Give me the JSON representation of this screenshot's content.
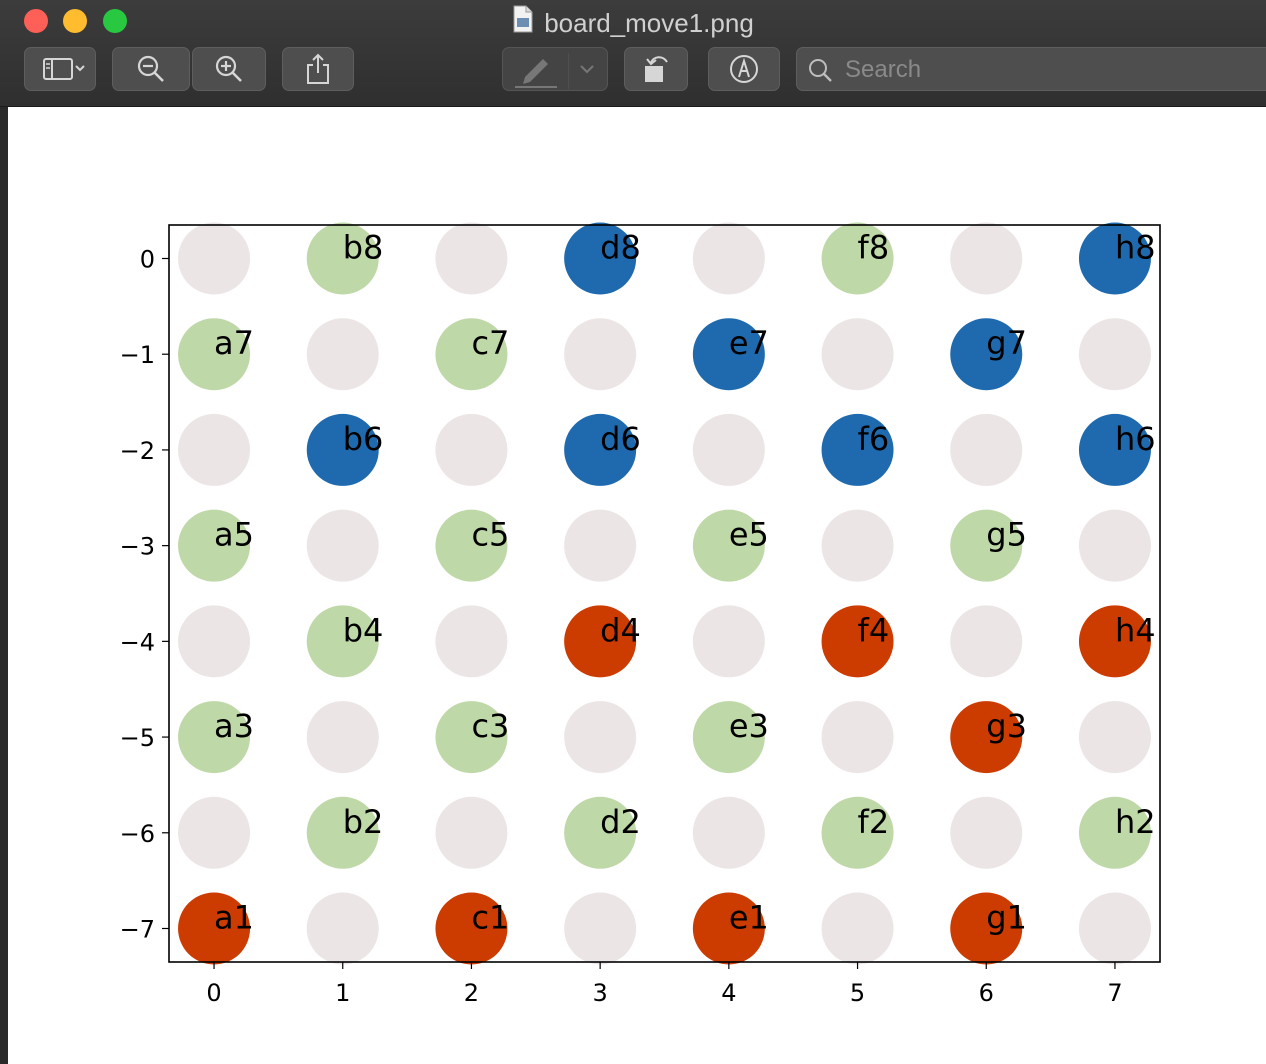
{
  "window": {
    "title": "board_move1.png",
    "search_placeholder": "Search"
  },
  "toolbar": {
    "icons": [
      "sidebar-icon",
      "chevron-down-icon",
      "zoom-out-icon",
      "zoom-in-icon",
      "share-icon",
      "markup-pen-icon",
      "chevron-down-icon",
      "rotate-icon",
      "annotate-icon",
      "search-icon"
    ]
  },
  "colors": {
    "empty": "#ece5e5",
    "light": "#bfd8a8",
    "blue": "#1f6aae",
    "red": "#cc3b00"
  },
  "chart_data": {
    "type": "scatter",
    "x_ticks": [
      "0",
      "1",
      "2",
      "3",
      "4",
      "5",
      "6",
      "7"
    ],
    "y_ticks": [
      "0",
      "−1",
      "−2",
      "−3",
      "−4",
      "−5",
      "−6",
      "−7"
    ],
    "xlim": [
      -0.35,
      7.35
    ],
    "ylim": [
      -7.35,
      0.35
    ],
    "grid": false,
    "points": [
      {
        "x": 0,
        "y": 0,
        "c": "empty",
        "label": ""
      },
      {
        "x": 1,
        "y": 0,
        "c": "light",
        "label": "b8"
      },
      {
        "x": 2,
        "y": 0,
        "c": "empty",
        "label": ""
      },
      {
        "x": 3,
        "y": 0,
        "c": "blue",
        "label": "d8"
      },
      {
        "x": 4,
        "y": 0,
        "c": "empty",
        "label": ""
      },
      {
        "x": 5,
        "y": 0,
        "c": "light",
        "label": "f8"
      },
      {
        "x": 6,
        "y": 0,
        "c": "empty",
        "label": ""
      },
      {
        "x": 7,
        "y": 0,
        "c": "blue",
        "label": "h8"
      },
      {
        "x": 0,
        "y": -1,
        "c": "light",
        "label": "a7"
      },
      {
        "x": 1,
        "y": -1,
        "c": "empty",
        "label": ""
      },
      {
        "x": 2,
        "y": -1,
        "c": "light",
        "label": "c7"
      },
      {
        "x": 3,
        "y": -1,
        "c": "empty",
        "label": ""
      },
      {
        "x": 4,
        "y": -1,
        "c": "blue",
        "label": "e7"
      },
      {
        "x": 5,
        "y": -1,
        "c": "empty",
        "label": ""
      },
      {
        "x": 6,
        "y": -1,
        "c": "blue",
        "label": "g7"
      },
      {
        "x": 7,
        "y": -1,
        "c": "empty",
        "label": ""
      },
      {
        "x": 0,
        "y": -2,
        "c": "empty",
        "label": ""
      },
      {
        "x": 1,
        "y": -2,
        "c": "blue",
        "label": "b6"
      },
      {
        "x": 2,
        "y": -2,
        "c": "empty",
        "label": ""
      },
      {
        "x": 3,
        "y": -2,
        "c": "blue",
        "label": "d6"
      },
      {
        "x": 4,
        "y": -2,
        "c": "empty",
        "label": ""
      },
      {
        "x": 5,
        "y": -2,
        "c": "blue",
        "label": "f6"
      },
      {
        "x": 6,
        "y": -2,
        "c": "empty",
        "label": ""
      },
      {
        "x": 7,
        "y": -2,
        "c": "blue",
        "label": "h6"
      },
      {
        "x": 0,
        "y": -3,
        "c": "light",
        "label": "a5"
      },
      {
        "x": 1,
        "y": -3,
        "c": "empty",
        "label": ""
      },
      {
        "x": 2,
        "y": -3,
        "c": "light",
        "label": "c5"
      },
      {
        "x": 3,
        "y": -3,
        "c": "empty",
        "label": ""
      },
      {
        "x": 4,
        "y": -3,
        "c": "light",
        "label": "e5"
      },
      {
        "x": 5,
        "y": -3,
        "c": "empty",
        "label": ""
      },
      {
        "x": 6,
        "y": -3,
        "c": "light",
        "label": "g5"
      },
      {
        "x": 7,
        "y": -3,
        "c": "empty",
        "label": ""
      },
      {
        "x": 0,
        "y": -4,
        "c": "empty",
        "label": ""
      },
      {
        "x": 1,
        "y": -4,
        "c": "light",
        "label": "b4"
      },
      {
        "x": 2,
        "y": -4,
        "c": "empty",
        "label": ""
      },
      {
        "x": 3,
        "y": -4,
        "c": "red",
        "label": "d4"
      },
      {
        "x": 4,
        "y": -4,
        "c": "empty",
        "label": ""
      },
      {
        "x": 5,
        "y": -4,
        "c": "red",
        "label": "f4"
      },
      {
        "x": 6,
        "y": -4,
        "c": "empty",
        "label": ""
      },
      {
        "x": 7,
        "y": -4,
        "c": "red",
        "label": "h4"
      },
      {
        "x": 0,
        "y": -5,
        "c": "light",
        "label": "a3"
      },
      {
        "x": 1,
        "y": -5,
        "c": "empty",
        "label": ""
      },
      {
        "x": 2,
        "y": -5,
        "c": "light",
        "label": "c3"
      },
      {
        "x": 3,
        "y": -5,
        "c": "empty",
        "label": ""
      },
      {
        "x": 4,
        "y": -5,
        "c": "light",
        "label": "e3"
      },
      {
        "x": 5,
        "y": -5,
        "c": "empty",
        "label": ""
      },
      {
        "x": 6,
        "y": -5,
        "c": "red",
        "label": "g3"
      },
      {
        "x": 7,
        "y": -5,
        "c": "empty",
        "label": ""
      },
      {
        "x": 0,
        "y": -6,
        "c": "empty",
        "label": ""
      },
      {
        "x": 1,
        "y": -6,
        "c": "light",
        "label": "b2"
      },
      {
        "x": 2,
        "y": -6,
        "c": "empty",
        "label": ""
      },
      {
        "x": 3,
        "y": -6,
        "c": "light",
        "label": "d2"
      },
      {
        "x": 4,
        "y": -6,
        "c": "empty",
        "label": ""
      },
      {
        "x": 5,
        "y": -6,
        "c": "light",
        "label": "f2"
      },
      {
        "x": 6,
        "y": -6,
        "c": "empty",
        "label": ""
      },
      {
        "x": 7,
        "y": -6,
        "c": "light",
        "label": "h2"
      },
      {
        "x": 0,
        "y": -7,
        "c": "red",
        "label": "a1"
      },
      {
        "x": 1,
        "y": -7,
        "c": "empty",
        "label": ""
      },
      {
        "x": 2,
        "y": -7,
        "c": "red",
        "label": "c1"
      },
      {
        "x": 3,
        "y": -7,
        "c": "empty",
        "label": ""
      },
      {
        "x": 4,
        "y": -7,
        "c": "red",
        "label": "e1"
      },
      {
        "x": 5,
        "y": -7,
        "c": "empty",
        "label": ""
      },
      {
        "x": 6,
        "y": -7,
        "c": "red",
        "label": "g1"
      },
      {
        "x": 7,
        "y": -7,
        "c": "empty",
        "label": ""
      }
    ]
  }
}
